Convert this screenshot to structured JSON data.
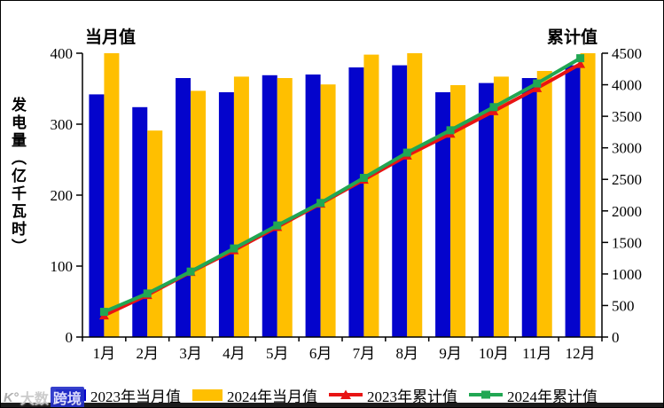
{
  "titles": {
    "left": "当月值",
    "right": "累计值",
    "y_axis": "发电量（亿千瓦时）"
  },
  "watermark": {
    "logo": "K°",
    "text_gray": "大数",
    "text_blue": "跨境"
  },
  "colors": {
    "bar_2023": "#0404CC",
    "bar_2024": "#FFBF00",
    "line_2023": "#E81414",
    "line_2024": "#21A753",
    "axis": "#000000"
  },
  "legend": [
    {
      "label": "2023年当月值",
      "marker": "bar",
      "color": "#0404CC"
    },
    {
      "label": "2024年当月值",
      "marker": "bar",
      "color": "#FFBF00"
    },
    {
      "label": "2023年累计值",
      "marker": "line-triangle",
      "color": "#E81414"
    },
    {
      "label": "2024年累计值",
      "marker": "line-square",
      "color": "#21A753"
    }
  ],
  "chart_data": {
    "type": "bar+line (dual axis)",
    "title": "",
    "xlabel": "",
    "ylabel_left": "发电量（亿千瓦时）",
    "left_axis_title": "当月值",
    "right_axis_title": "累计值",
    "categories": [
      "1月",
      "2月",
      "3月",
      "4月",
      "5月",
      "6月",
      "7月",
      "8月",
      "9月",
      "10月",
      "11月",
      "12月"
    ],
    "left_axis": {
      "range": [
        0,
        400
      ],
      "ticks": [
        0,
        100,
        200,
        300,
        400
      ]
    },
    "right_axis": {
      "range": [
        0,
        4500
      ],
      "ticks": [
        0,
        500,
        1000,
        1500,
        2000,
        2500,
        3000,
        3500,
        4000,
        4500
      ]
    },
    "grid": false,
    "legend_position": "bottom",
    "bar_series": [
      {
        "name": "2023年当月值",
        "axis": "left",
        "color": "#0404CC",
        "values": [
          342,
          324,
          365,
          345,
          369,
          370,
          380,
          383,
          345,
          358,
          365,
          383
        ]
      },
      {
        "name": "2024年当月值",
        "axis": "left",
        "color": "#FFBF00",
        "values": [
          400,
          291,
          347,
          367,
          365,
          356,
          398,
          400,
          355,
          367,
          375,
          400
        ]
      }
    ],
    "line_series": [
      {
        "name": "2023年累计值",
        "axis": "right",
        "color": "#E81414",
        "marker": "triangle",
        "values": [
          342,
          666,
          1031,
          1376,
          1745,
          2115,
          2495,
          2878,
          3223,
          3581,
          3946,
          4329
        ]
      },
      {
        "name": "2024年累计值",
        "axis": "right",
        "color": "#21A753",
        "marker": "square",
        "values": [
          400,
          691,
          1038,
          1405,
          1770,
          2126,
          2524,
          2924,
          3279,
          3646,
          4021,
          4421
        ]
      }
    ]
  }
}
